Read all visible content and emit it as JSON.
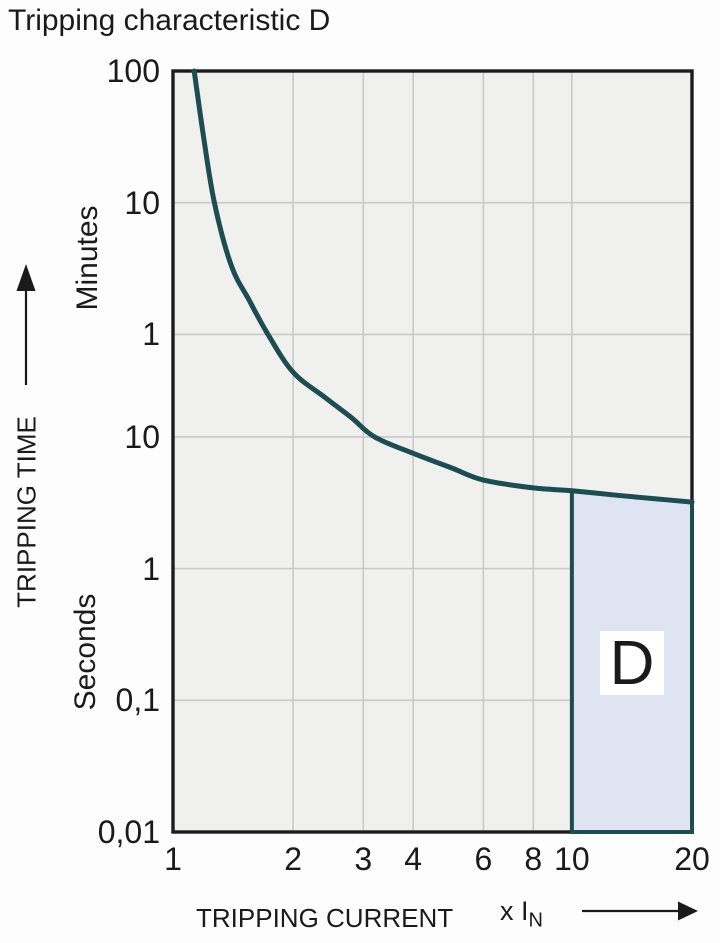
{
  "title": "Tripping characteristic D",
  "colors": {
    "curve": "#1d4d52",
    "region_fill": "#dfe4f2",
    "region_border": "#1d4d52",
    "plot_background": "#f0f0ee",
    "grid": "#c9c9c9",
    "plot_border": "#1c1c1c",
    "text": "#1a1a1a",
    "region_label_background": "#ffffff"
  },
  "y_axis": {
    "label": "TRIPPING TIME",
    "units": [
      "Minutes",
      "Seconds"
    ]
  },
  "x_axis": {
    "label": "TRIPPING CURRENT",
    "multiplier": "x I",
    "multiplier_sub": "N"
  },
  "chart_data": {
    "type": "line",
    "title": "Tripping characteristic D",
    "xlabel": "TRIPPING CURRENT x IN",
    "ylabel": "TRIPPING TIME",
    "x_scale": "log",
    "y_scale": "log",
    "grid": true,
    "xlim": [
      1,
      20
    ],
    "ylim_seconds": [
      0.01,
      6000
    ],
    "x_ticks": [
      {
        "value": 1,
        "label": "1"
      },
      {
        "value": 2,
        "label": "2"
      },
      {
        "value": 3,
        "label": "3"
      },
      {
        "value": 4,
        "label": "4"
      },
      {
        "value": 6,
        "label": "6"
      },
      {
        "value": 8,
        "label": "8"
      },
      {
        "value": 10,
        "label": "10"
      },
      {
        "value": 20,
        "label": "20"
      }
    ],
    "y_ticks": [
      {
        "seconds": 6000,
        "label": "100",
        "unit": "minutes"
      },
      {
        "seconds": 600,
        "label": "10",
        "unit": "minutes"
      },
      {
        "seconds": 60,
        "label": "1",
        "unit": "minutes"
      },
      {
        "seconds": 10,
        "label": "10",
        "unit": "seconds"
      },
      {
        "seconds": 1,
        "label": "1",
        "unit": "seconds"
      },
      {
        "seconds": 0.1,
        "label": "0,1",
        "unit": "seconds"
      },
      {
        "seconds": 0.01,
        "label": "0,01",
        "unit": "seconds"
      }
    ],
    "curve_points_xIN_vs_seconds": [
      [
        1.13,
        6000
      ],
      [
        1.19,
        2000
      ],
      [
        1.27,
        600
      ],
      [
        1.4,
        200
      ],
      [
        1.55,
        110
      ],
      [
        1.73,
        60
      ],
      [
        2,
        31
      ],
      [
        2.4,
        20
      ],
      [
        2.8,
        14
      ],
      [
        3.2,
        10
      ],
      [
        4,
        7.5
      ],
      [
        5,
        5.8
      ],
      [
        6,
        4.7
      ],
      [
        8,
        4.1
      ],
      [
        10,
        3.9
      ],
      [
        13,
        3.6
      ],
      [
        16,
        3.4
      ],
      [
        20,
        3.2
      ]
    ],
    "region": {
      "label": "D",
      "x_range": [
        10,
        20
      ],
      "y_bottom_seconds": 0.01,
      "top_boundary": "curve"
    }
  }
}
